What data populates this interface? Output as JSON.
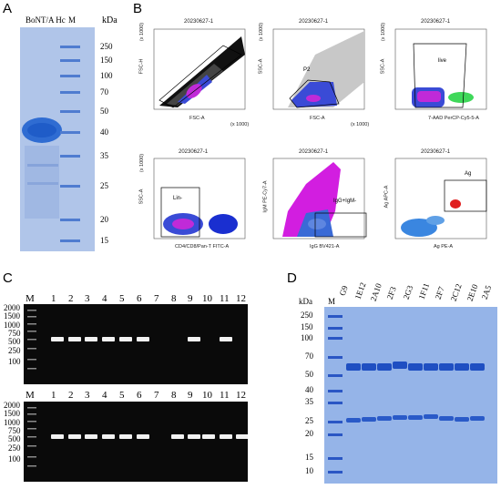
{
  "panel_a": {
    "letter": "A",
    "lane1": "BoNT/A Hc",
    "lane2": "M",
    "unit": "kDa",
    "markers": [
      "250",
      "150",
      "100",
      "70",
      "50",
      "40",
      "35",
      "25",
      "20",
      "15"
    ]
  },
  "panel_b": {
    "letter": "B",
    "plots": [
      {
        "title": "20230627-1",
        "xlabel": "FSC-A",
        "ylabel": "FSC-H",
        "gate": "",
        "xunit": "(x 1000)",
        "yunit": "(x 1000)"
      },
      {
        "title": "20230627-1",
        "xlabel": "FSC-A",
        "ylabel": "SSC-A",
        "gate": "P2",
        "xunit": "(x 1000)",
        "yunit": "(x 1000)"
      },
      {
        "title": "20230627-1",
        "xlabel": "7-AAD PerCP-Cy5-5-A",
        "ylabel": "SSC-A",
        "gate": "live",
        "xunit": "",
        "yunit": "(x 1000)"
      },
      {
        "title": "20230627-1",
        "xlabel": "CD4/CD8/Pan-T FITC-A",
        "ylabel": "SSC-A",
        "gate": "Lin-",
        "xunit": "",
        "yunit": "(x 1000)"
      },
      {
        "title": "20230627-1",
        "xlabel": "IgG BV421-A",
        "ylabel": "IgM PE-Cy7-A",
        "gate": "IgG+IgM-",
        "xunit": "",
        "yunit": ""
      },
      {
        "title": "20230627-1",
        "xlabel": "Ag PE-A",
        "ylabel": "Ag APC-A",
        "gate": "Ag",
        "xunit": "",
        "yunit": ""
      }
    ]
  },
  "panel_c": {
    "letter": "C",
    "m_label": "M",
    "lanes": [
      "1",
      "2",
      "3",
      "4",
      "5",
      "6",
      "7",
      "8",
      "9",
      "10",
      "11",
      "12"
    ],
    "markers": [
      "2000",
      "1500",
      "1000",
      "750",
      "500",
      "250",
      "100"
    ],
    "top_bands": [
      1,
      1,
      1,
      1,
      1,
      1,
      0,
      0,
      1,
      0,
      1,
      0
    ],
    "bottom_bands": [
      1,
      1,
      1,
      1,
      1,
      1,
      0,
      1,
      1,
      1,
      1,
      1
    ]
  },
  "panel_d": {
    "letter": "D",
    "unit": "kDa",
    "m_label": "M",
    "lanes": [
      "G9",
      "1E12",
      "2A10",
      "2F3",
      "2G3",
      "1F11",
      "2F7",
      "2C12",
      "2E10",
      "2A5"
    ],
    "markers": [
      "250",
      "150",
      "100",
      "70",
      "50",
      "40",
      "35",
      "25",
      "20",
      "15",
      "10"
    ]
  }
}
